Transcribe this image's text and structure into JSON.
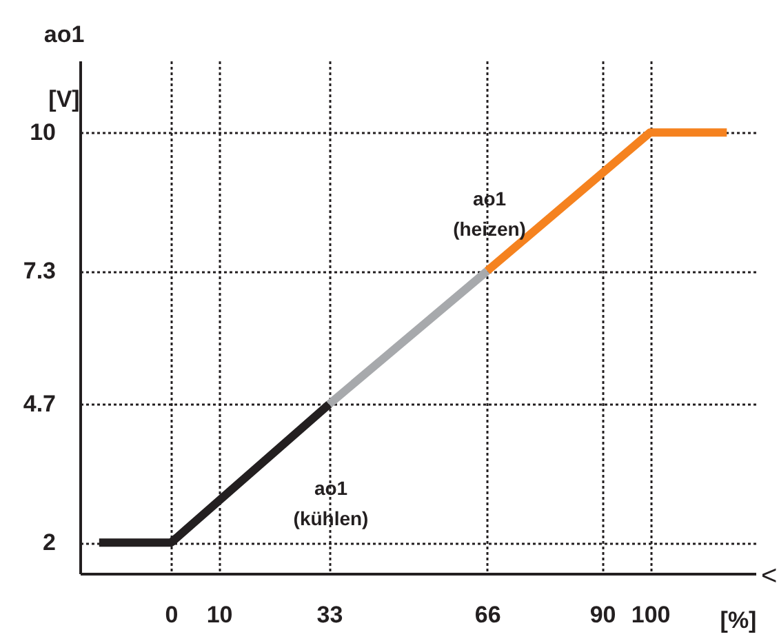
{
  "chart_data": {
    "type": "line",
    "xlabel": "[%]",
    "ylabel": "ao1 [V]",
    "xlim": [
      -19,
      122
    ],
    "ylim": [
      1.4,
      11.4
    ],
    "xticks": [
      0,
      10,
      33,
      66,
      90,
      100
    ],
    "yticks": [
      2,
      {
        "value": 4.7,
        "label": "4.7"
      },
      {
        "value": 7.3,
        "label": "7.3"
      },
      10
    ],
    "grid": true,
    "series": [
      {
        "color": "#231f20",
        "x": [
          -15,
          0,
          33
        ],
        "values": [
          2,
          2,
          4.7
        ]
      },
      {
        "color": "#a7a9ac",
        "x": [
          33,
          66
        ],
        "values": [
          4.7,
          7.3
        ]
      },
      {
        "color": "#f5821f",
        "x": [
          66,
          100,
          116
        ],
        "values": [
          7.3,
          10,
          10
        ]
      }
    ],
    "annotations": [
      "ao1 (kühlen)",
      "ao1 (heizen)",
      "<"
    ]
  }
}
